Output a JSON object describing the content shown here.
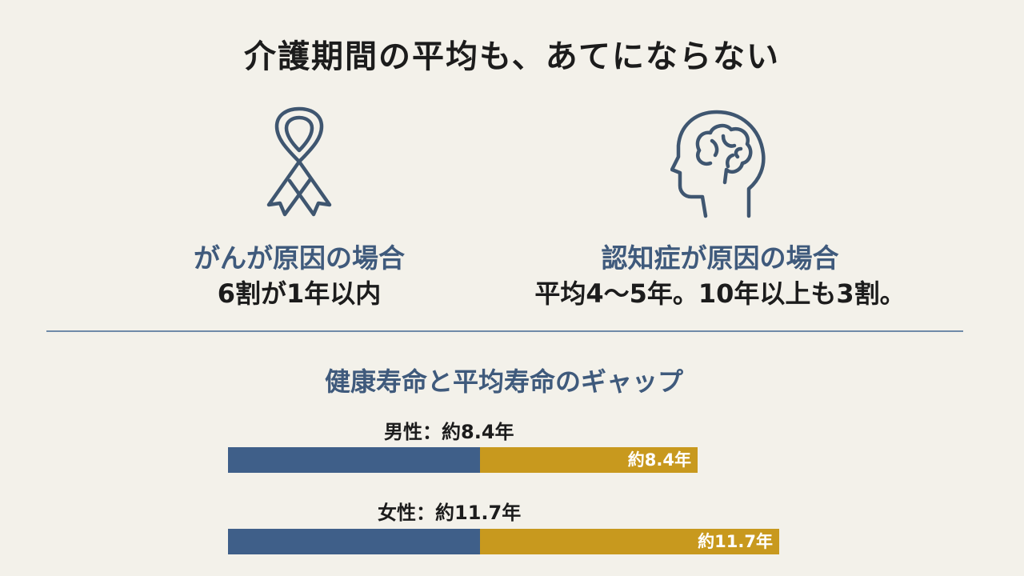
{
  "title": "介護期間の平均も、あてにならない",
  "causes": [
    {
      "heading": "がんが原因の場合",
      "value": "6割が1年以内",
      "icon": "awareness-ribbon-icon"
    },
    {
      "heading": "認知症が原因の場合",
      "value": "平均4〜5年。10年以上も3割。",
      "icon": "head-brain-icon"
    }
  ],
  "gap_section": {
    "title": "健康寿命と平均寿命のギャップ",
    "male": {
      "label": "男性：約8.4年",
      "bar_label": "約8.4年",
      "gap_years": 8.4
    },
    "female": {
      "label": "女性：約11.7年",
      "bar_label": "約11.7年",
      "gap_years": 11.7
    }
  },
  "colors": {
    "heading_blue": "#3f5a7c",
    "healthy_bar": "#3f5f89",
    "gap_bar": "#c8991e",
    "icon_stroke": "#3f5670",
    "background": "#f3f1ea"
  }
}
